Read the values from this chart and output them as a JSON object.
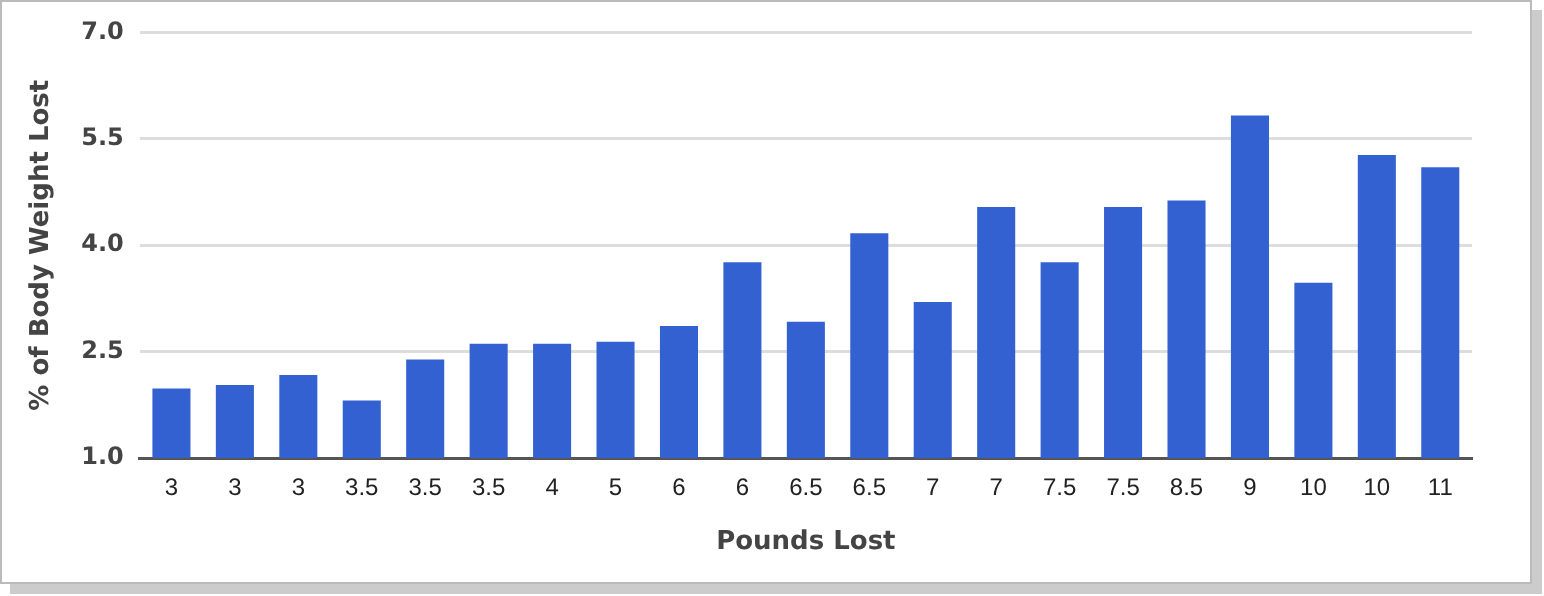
{
  "chart_data": {
    "type": "bar",
    "xlabel": "Pounds Lost",
    "ylabel": "% of Body Weight Lost",
    "categories": [
      "3",
      "3",
      "3",
      "3.5",
      "3.5",
      "3.5",
      "4",
      "5",
      "6",
      "6",
      "6.5",
      "6.5",
      "7",
      "7",
      "7.5",
      "7.5",
      "8.5",
      "9",
      "10",
      "10",
      "11"
    ],
    "values": [
      1.98,
      2.03,
      2.17,
      1.81,
      2.39,
      2.61,
      2.61,
      2.64,
      2.86,
      3.76,
      2.92,
      4.17,
      3.2,
      4.54,
      3.76,
      4.54,
      4.63,
      5.83,
      3.47,
      5.27,
      5.1
    ],
    "color": "#3461d1",
    "ylim": [
      1,
      7
    ],
    "yticks": [
      {
        "value": 1,
        "label": "1.0"
      },
      {
        "value": 2.5,
        "label": "2.5"
      },
      {
        "value": 4,
        "label": "4.0"
      },
      {
        "value": 5.5,
        "label": "5.5"
      },
      {
        "value": 7,
        "label": "7.0"
      }
    ],
    "grid": "y",
    "legend": false
  }
}
